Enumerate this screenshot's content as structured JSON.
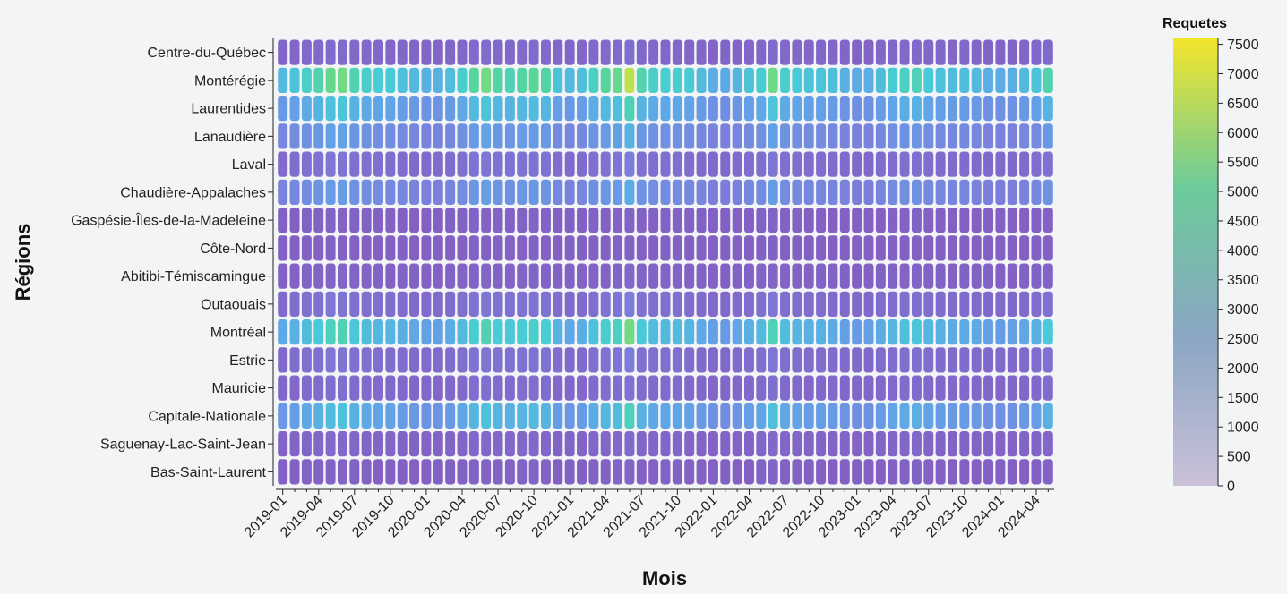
{
  "chart_data": {
    "type": "heatmap",
    "xlabel": "Mois",
    "ylabel": "Régions",
    "legend_title": "Requetes",
    "legend_placement": "right",
    "color_scale": [
      "#cbc1d9",
      "#8aa6c3",
      "#6ccb9a",
      "#f3e52c"
    ],
    "cell_color_reference": "viridis-like",
    "zmin": 0,
    "zmax": 7600,
    "legend_ticks": [
      0,
      500,
      1000,
      1500,
      2000,
      2500,
      3000,
      3500,
      4000,
      4500,
      5000,
      5500,
      6000,
      6500,
      7000,
      7500
    ],
    "months": [
      "2019-01",
      "2019-02",
      "2019-03",
      "2019-04",
      "2019-05",
      "2019-06",
      "2019-07",
      "2019-08",
      "2019-09",
      "2019-10",
      "2019-11",
      "2019-12",
      "2020-01",
      "2020-02",
      "2020-03",
      "2020-04",
      "2020-05",
      "2020-06",
      "2020-07",
      "2020-08",
      "2020-09",
      "2020-10",
      "2020-11",
      "2020-12",
      "2021-01",
      "2021-02",
      "2021-03",
      "2021-04",
      "2021-05",
      "2021-06",
      "2021-07",
      "2021-08",
      "2021-09",
      "2021-10",
      "2021-11",
      "2021-12",
      "2022-01",
      "2022-02",
      "2022-03",
      "2022-04",
      "2022-05",
      "2022-06",
      "2022-07",
      "2022-08",
      "2022-09",
      "2022-10",
      "2022-11",
      "2022-12",
      "2023-01",
      "2023-02",
      "2023-03",
      "2023-04",
      "2023-05",
      "2023-06",
      "2023-07",
      "2023-08",
      "2023-09",
      "2023-10",
      "2023-11",
      "2023-12",
      "2024-01",
      "2024-02",
      "2024-03",
      "2024-04",
      "2024-05"
    ],
    "x_tick_labels": [
      "2019-01",
      "2019-04",
      "2019-07",
      "2019-10",
      "2020-01",
      "2020-04",
      "2020-07",
      "2020-10",
      "2021-01",
      "2021-04",
      "2021-07",
      "2021-10",
      "2022-01",
      "2022-04",
      "2022-07",
      "2022-10",
      "2023-01",
      "2023-04",
      "2023-07",
      "2023-10",
      "2024-01",
      "2024-04"
    ],
    "regions": [
      "Centre-du-Québec",
      "Montérégie",
      "Laurentides",
      "Lanaudière",
      "Laval",
      "Chaudière-Appalaches",
      "Gaspésie-Îles-de-la-Madeleine",
      "Côte-Nord",
      "Abitibi-Témiscamingue",
      "Outaouais",
      "Montréal",
      "Estrie",
      "Mauricie",
      "Capitale-Nationale",
      "Saguenay-Lac-Saint-Jean",
      "Bas-Saint-Laurent"
    ],
    "region_peaks": [
      400,
      5400,
      3400,
      2200,
      700,
      2000,
      150,
      120,
      200,
      700,
      4300,
      700,
      500,
      3300,
      300,
      150
    ],
    "seasonal_profile": [
      0.55,
      0.62,
      0.72,
      0.82,
      0.95,
      1.0,
      0.8,
      0.72,
      0.68,
      0.66,
      0.6,
      0.55,
      0.5,
      0.5,
      0.58,
      0.7,
      0.88,
      1.0,
      0.85,
      0.8,
      0.86,
      0.9,
      0.85,
      0.62,
      0.55,
      0.6,
      0.75,
      0.88,
      0.95,
      1.25,
      0.82,
      0.72,
      0.7,
      0.7,
      0.66,
      0.56,
      0.48,
      0.45,
      0.52,
      0.62,
      0.7,
      0.98,
      0.72,
      0.66,
      0.62,
      0.62,
      0.58,
      0.5,
      0.46,
      0.48,
      0.58,
      0.68,
      0.74,
      0.78,
      0.66,
      0.6,
      0.58,
      0.58,
      0.55,
      0.48,
      0.46,
      0.48,
      0.55,
      0.62,
      0.82
    ]
  }
}
